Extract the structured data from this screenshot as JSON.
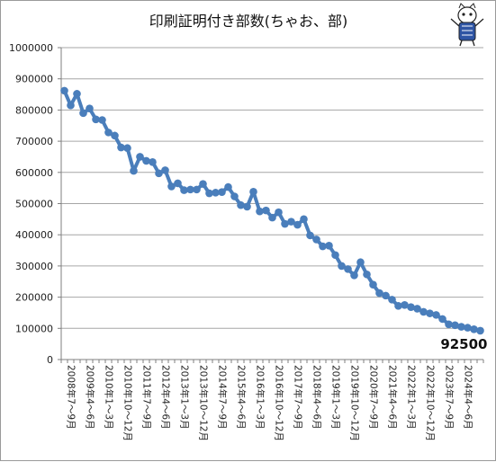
{
  "chart_data": {
    "type": "line",
    "title": "印刷証明付き部数(ちゃお、部)",
    "xlabel": "",
    "ylabel": "",
    "ylim": [
      0,
      1000000
    ],
    "y_ticks": [
      "0",
      "100000",
      "200000",
      "300000",
      "400000",
      "500000",
      "600000",
      "700000",
      "800000",
      "900000",
      "1000000"
    ],
    "x_tick_labels": [
      "2008年7～9月",
      "2009年4～6月",
      "2010年1～3月",
      "2010年10～12月",
      "2011年7～9月",
      "2012年4～6月",
      "2013年1～3月",
      "2013年10～12月",
      "2014年7～9月",
      "2015年4～6月",
      "2016年1～3月",
      "2016年10～12月",
      "2017年7～9月",
      "2018年4～6月",
      "2019年1～3月",
      "2019年10～12月",
      "2020年7～9月",
      "2021年4～6月",
      "2022年1～3月",
      "2022年10～12月",
      "2023年7～9月",
      "2024年4～6月"
    ],
    "grid": true,
    "legend": "none",
    "line_color": "#4a7ebb",
    "end_label": "92500",
    "series": [
      {
        "values": [
          862000,
          815000,
          852000,
          790000,
          805000,
          770000,
          768000,
          728000,
          718000,
          680000,
          678000,
          605000,
          650000,
          637000,
          633000,
          597000,
          607000,
          555000,
          565000,
          543000,
          545000,
          545000,
          563000,
          533000,
          535000,
          537000,
          553000,
          523000,
          495000,
          490000,
          538000,
          475000,
          478000,
          455000,
          472000,
          435000,
          442000,
          432000,
          450000,
          398000,
          385000,
          363000,
          365000,
          335000,
          300000,
          290000,
          270000,
          312000,
          273000,
          240000,
          213000,
          205000,
          192000,
          172000,
          175000,
          168000,
          163000,
          153000,
          148000,
          143000,
          130000,
          113000,
          110000,
          105000,
          102000,
          97000,
          92500
        ]
      }
    ]
  }
}
